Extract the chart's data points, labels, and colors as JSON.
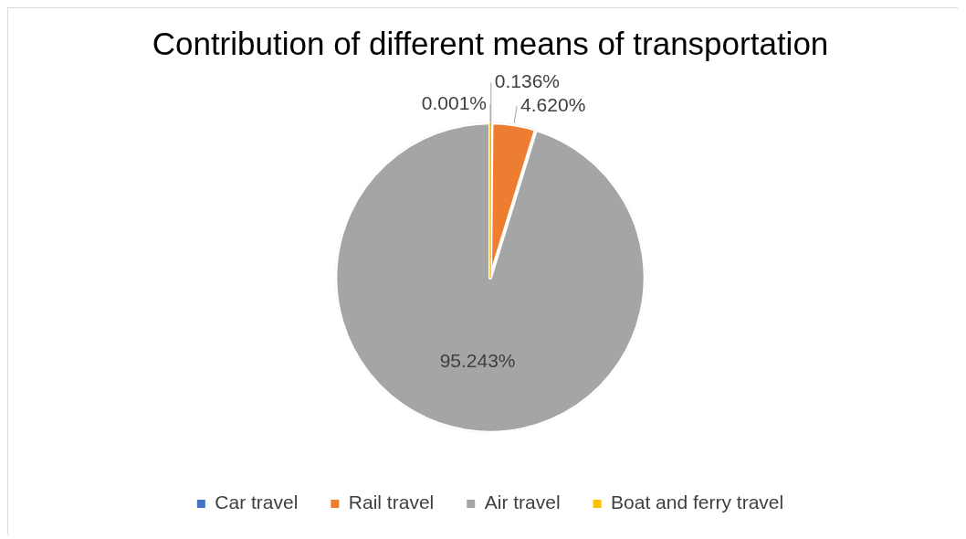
{
  "chart_data": {
    "type": "pie",
    "title": "Contribution of different means of transportation",
    "categories": [
      "Car travel",
      "Rail travel",
      "Air travel",
      "Boat and ferry travel"
    ],
    "values": [
      0.136,
      4.62,
      95.243,
      0.001
    ],
    "colors": [
      "#4472c4",
      "#ed7d31",
      "#a5a5a5",
      "#ffc000"
    ],
    "value_labels": [
      "0.136%",
      "4.620%",
      "95.243%",
      "0.001%"
    ],
    "legend": "bottom"
  }
}
